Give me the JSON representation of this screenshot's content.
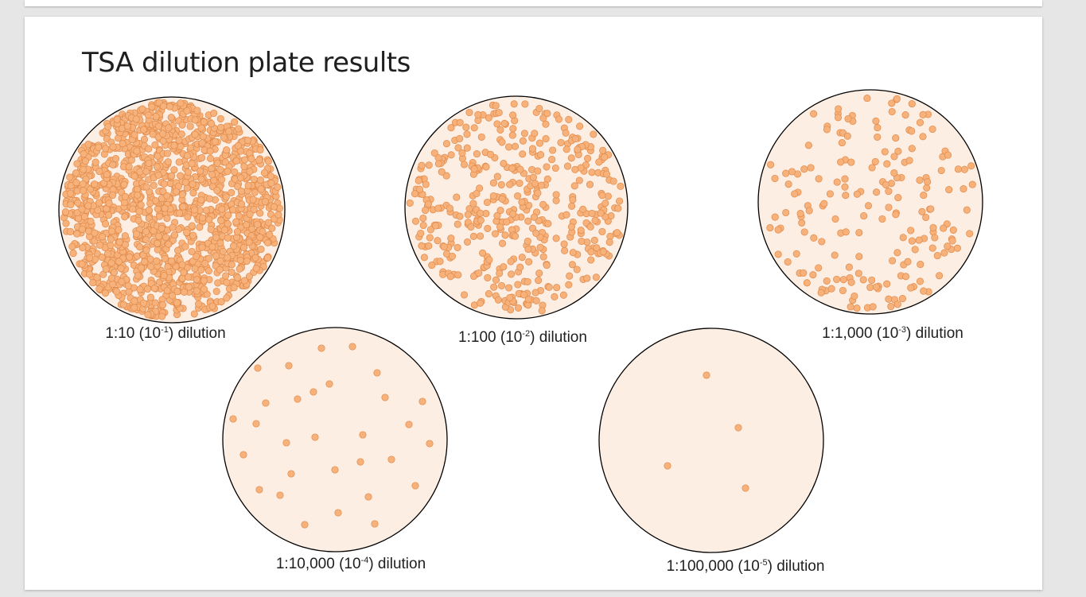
{
  "slide": {
    "title": "TSA dilution plate results"
  },
  "colors": {
    "plate_fill": "#fdeee3",
    "colony_fill": "#f6b27a",
    "colony_stroke": "#e0894a",
    "plate_outline": "#000000"
  },
  "plates": [
    {
      "id": "plate-1-10",
      "colony_density": "very high",
      "caption": {
        "prefix": "1:10 (10",
        "exponent": "-1",
        "suffix": ") dilution"
      }
    },
    {
      "id": "plate-1-100",
      "colony_density": "high",
      "caption": {
        "prefix": "1:100 (10",
        "exponent": "-2",
        "suffix": ") dilution"
      }
    },
    {
      "id": "plate-1-1000",
      "colony_density": "medium",
      "caption": {
        "prefix": "1:1,000 (10",
        "exponent": "-3",
        "suffix": ") dilution"
      }
    },
    {
      "id": "plate-1-10000",
      "colony_count": 31,
      "caption": {
        "prefix": "1:10,000 (10",
        "exponent": "-4",
        "suffix": ") dilution"
      }
    },
    {
      "id": "plate-1-100000",
      "colony_count": 4,
      "caption": {
        "prefix": "1:100,000 (10",
        "exponent": "-5",
        "suffix": ") dilution"
      }
    }
  ]
}
